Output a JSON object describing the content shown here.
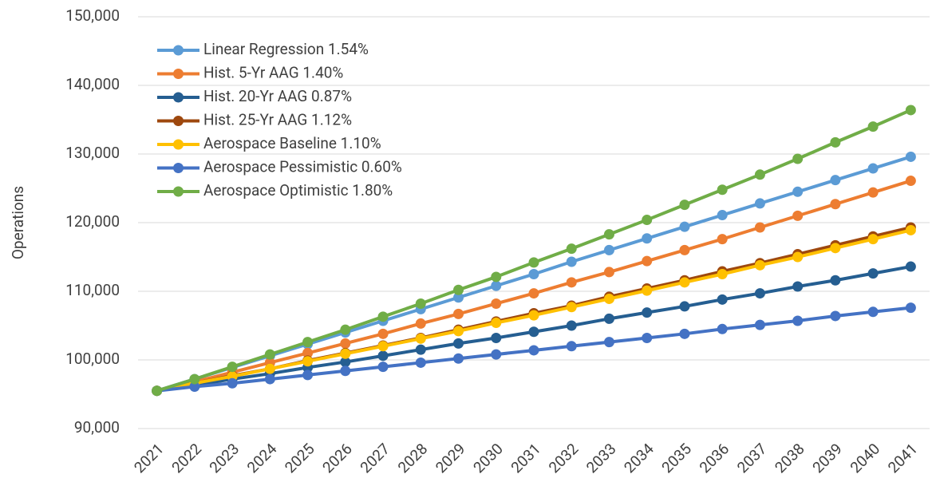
{
  "chart_data": {
    "type": "line",
    "y_label": "Operations",
    "categories": [
      "2021",
      "2022",
      "2023",
      "2024",
      "2025",
      "2026",
      "2027",
      "2028",
      "2029",
      "2030",
      "2031",
      "2032",
      "2033",
      "2034",
      "2035",
      "2036",
      "2037",
      "2038",
      "2039",
      "2040",
      "2041"
    ],
    "ylim": [
      90000,
      150000
    ],
    "yticks": [
      {
        "value": 90000,
        "label": "90,000"
      },
      {
        "value": 100000,
        "label": "100,000"
      },
      {
        "value": 110000,
        "label": "110,000"
      },
      {
        "value": 120000,
        "label": "120,000"
      },
      {
        "value": 130000,
        "label": "130,000"
      },
      {
        "value": 140000,
        "label": "140,000"
      },
      {
        "value": 150000,
        "label": "150,000"
      }
    ],
    "grid": true,
    "legend": "top-left",
    "series": [
      {
        "name": "Linear Regression 1.54%",
        "color": "#5b9bd5",
        "values": [
          95500,
          97200,
          98900,
          100600,
          102300,
          104000,
          105700,
          107400,
          109100,
          110800,
          112500,
          114300,
          116000,
          117700,
          119400,
          121100,
          122800,
          124500,
          126200,
          127900,
          129600
        ]
      },
      {
        "name": "Hist. 5-Yr AAG 1.40%",
        "color": "#ed7d31",
        "values": [
          95500,
          96800,
          98200,
          99600,
          101000,
          102400,
          103800,
          105300,
          106700,
          108200,
          109700,
          111300,
          112800,
          114400,
          116000,
          117600,
          119300,
          121000,
          122700,
          124400,
          126100
        ]
      },
      {
        "name": "Hist. 20-Yr AAG 0.87%",
        "color": "#255e91",
        "values": [
          95500,
          96300,
          97200,
          98000,
          98900,
          99700,
          100600,
          101500,
          102400,
          103200,
          104100,
          105000,
          106000,
          106900,
          107800,
          108800,
          109700,
          110700,
          111600,
          112600,
          113600
        ]
      },
      {
        "name": "Hist. 25-Yr AAG 1.12%",
        "color": "#9e480e",
        "values": [
          95500,
          96600,
          97700,
          98700,
          99900,
          101000,
          102100,
          103200,
          104400,
          105600,
          106800,
          107900,
          109200,
          110400,
          111600,
          112900,
          114100,
          115400,
          116700,
          118000,
          119300
        ]
      },
      {
        "name": "Aerospace Baseline 1.10%",
        "color": "#ffc000",
        "values": [
          95500,
          96600,
          97600,
          98700,
          99800,
          100900,
          102000,
          103100,
          104200,
          105400,
          106500,
          107700,
          108900,
          110100,
          111300,
          112500,
          113800,
          115000,
          116300,
          117600,
          118900
        ]
      },
      {
        "name": "Aerospace Pessimistic 0.60%",
        "color": "#4472c4",
        "values": [
          95500,
          96100,
          96600,
          97200,
          97800,
          98400,
          99000,
          99600,
          100200,
          100800,
          101400,
          102000,
          102600,
          103200,
          103800,
          104500,
          105100,
          105700,
          106400,
          107000,
          107600
        ]
      },
      {
        "name": "Aerospace Optimistic 1.80%",
        "color": "#70ad47",
        "values": [
          95500,
          97200,
          99000,
          100800,
          102600,
          104400,
          106300,
          108200,
          110200,
          112100,
          114200,
          116200,
          118300,
          120400,
          122600,
          124800,
          127000,
          129300,
          131700,
          134000,
          136400
        ]
      }
    ]
  }
}
